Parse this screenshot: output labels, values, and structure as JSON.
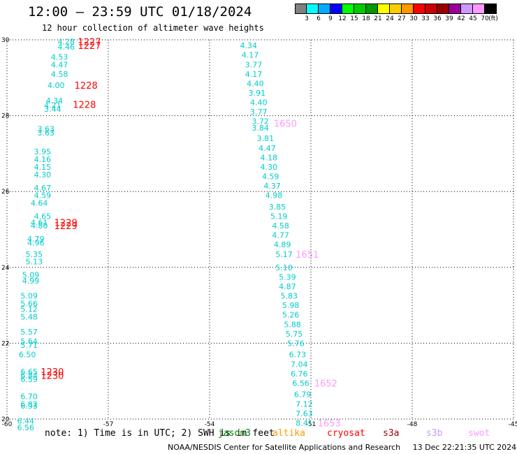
{
  "header": {
    "title": "12:00 – 23:59 UTC 01/18/2024",
    "subtitle": "12 hour collection of altimeter wave heights"
  },
  "colorbar": {
    "colors": [
      "#808080",
      "#00ffff",
      "#00aaff",
      "#0000ff",
      "#00ff00",
      "#00cc00",
      "#009900",
      "#ffff00",
      "#ffcc00",
      "#ff9900",
      "#ff0000",
      "#cc0000",
      "#990000",
      "#990099",
      "#cc99ff",
      "#ff99ff",
      "#000000"
    ],
    "labels": [
      "3",
      "6",
      "9",
      "12",
      "15",
      "18",
      "21",
      "24",
      "27",
      "30",
      "33",
      "36",
      "39",
      "42",
      "45",
      "70",
      "(ft)"
    ]
  },
  "footer": {
    "note": "note: 1) Time is in UTC; 2) SWH is in feet",
    "credit": "NOAA/NESDIS Center for Satellite Applications and Research",
    "generated": "13 Dec 22:21:35 UTC 2024"
  },
  "satellites": [
    {
      "name": "jason3",
      "color": "#007f00"
    },
    {
      "name": "altika",
      "color": "#ff9900"
    },
    {
      "name": "cryosat",
      "color": "#ff0000"
    },
    {
      "name": "s3a",
      "color": "#990000"
    },
    {
      "name": "s3b",
      "color": "#cc99ff"
    },
    {
      "name": "swot",
      "color": "#ff99ff"
    }
  ],
  "chart_data": {
    "type": "scatter",
    "title": "12:00 – 23:59 UTC 01/18/2024",
    "xlim": [
      -60,
      -45
    ],
    "ylim": [
      20,
      30
    ],
    "xticks": [
      -60,
      -57,
      -54,
      -51,
      -48,
      -45
    ],
    "yticks": [
      20,
      22,
      24,
      26,
      28,
      30
    ],
    "grid": true,
    "value_color": "#00cccc",
    "series": [
      {
        "name": "swh",
        "points": [
          {
            "x": -58.5,
            "y": 29.95,
            "v": "4.28"
          },
          {
            "x": -58.5,
            "y": 29.82,
            "v": "4.46"
          },
          {
            "x": -58.7,
            "y": 29.55,
            "v": "4.53"
          },
          {
            "x": -58.7,
            "y": 29.35,
            "v": "4.47"
          },
          {
            "x": -58.7,
            "y": 29.1,
            "v": "4.58"
          },
          {
            "x": -58.8,
            "y": 28.8,
            "v": "4.00"
          },
          {
            "x": -58.85,
            "y": 28.4,
            "v": "4.34"
          },
          {
            "x": -58.9,
            "y": 28.28,
            "v": "4.21"
          },
          {
            "x": -58.9,
            "y": 28.18,
            "v": "3.44"
          },
          {
            "x": -59.1,
            "y": 27.65,
            "v": "3.63"
          },
          {
            "x": -59.1,
            "y": 27.55,
            "v": "3.63"
          },
          {
            "x": -59.2,
            "y": 27.05,
            "v": "3.95"
          },
          {
            "x": -59.2,
            "y": 26.85,
            "v": "4.16"
          },
          {
            "x": -59.2,
            "y": 26.65,
            "v": "4.15"
          },
          {
            "x": -59.2,
            "y": 26.45,
            "v": "4.30"
          },
          {
            "x": -59.2,
            "y": 26.1,
            "v": "4.67"
          },
          {
            "x": -59.2,
            "y": 25.9,
            "v": "4.59"
          },
          {
            "x": -59.3,
            "y": 25.7,
            "v": "4.64"
          },
          {
            "x": -59.2,
            "y": 25.35,
            "v": "4.65"
          },
          {
            "x": -59.3,
            "y": 25.18,
            "v": "4.61"
          },
          {
            "x": -59.3,
            "y": 25.1,
            "v": "4.80"
          },
          {
            "x": -59.4,
            "y": 24.75,
            "v": "4.79"
          },
          {
            "x": -59.4,
            "y": 24.65,
            "v": "4.96"
          },
          {
            "x": -59.45,
            "y": 24.35,
            "v": "5.35"
          },
          {
            "x": -59.45,
            "y": 24.15,
            "v": "5.13"
          },
          {
            "x": -59.55,
            "y": 23.8,
            "v": "5.09"
          },
          {
            "x": -59.55,
            "y": 23.65,
            "v": "4.99"
          },
          {
            "x": -59.6,
            "y": 23.25,
            "v": "5.09"
          },
          {
            "x": -59.6,
            "y": 23.05,
            "v": "5.66"
          },
          {
            "x": -59.6,
            "y": 22.9,
            "v": "5.12"
          },
          {
            "x": -59.6,
            "y": 22.7,
            "v": "5.48"
          },
          {
            "x": -59.6,
            "y": 22.3,
            "v": "5.57"
          },
          {
            "x": -59.6,
            "y": 22.05,
            "v": "5.64"
          },
          {
            "x": -59.6,
            "y": 21.95,
            "v": "5.71"
          },
          {
            "x": -59.65,
            "y": 21.7,
            "v": "6.50"
          },
          {
            "x": -59.6,
            "y": 21.25,
            "v": "6.65"
          },
          {
            "x": -59.6,
            "y": 21.15,
            "v": "6.84"
          },
          {
            "x": -59.6,
            "y": 21.05,
            "v": "6.59"
          },
          {
            "x": -59.6,
            "y": 20.6,
            "v": "6.70"
          },
          {
            "x": -59.6,
            "y": 20.4,
            "v": "6.82"
          },
          {
            "x": -59.6,
            "y": 20.35,
            "v": "6.93"
          },
          {
            "x": -59.7,
            "y": 19.95,
            "v": "6.44"
          },
          {
            "x": -59.7,
            "y": 19.78,
            "v": "6.56"
          },
          {
            "x": -53.1,
            "y": 29.85,
            "v": "4.34"
          },
          {
            "x": -53.05,
            "y": 29.6,
            "v": "4.17"
          },
          {
            "x": -52.95,
            "y": 29.35,
            "v": "3.77"
          },
          {
            "x": -52.95,
            "y": 29.1,
            "v": "4.17"
          },
          {
            "x": -52.9,
            "y": 28.85,
            "v": "4.40"
          },
          {
            "x": -52.85,
            "y": 28.6,
            "v": "3.91"
          },
          {
            "x": -52.8,
            "y": 28.35,
            "v": "4.40"
          },
          {
            "x": -52.8,
            "y": 28.1,
            "v": "3.77"
          },
          {
            "x": -52.75,
            "y": 27.85,
            "v": "3.72"
          },
          {
            "x": -52.75,
            "y": 27.68,
            "v": "3.84"
          },
          {
            "x": -52.6,
            "y": 27.4,
            "v": "3.81"
          },
          {
            "x": -52.55,
            "y": 27.15,
            "v": "4.47"
          },
          {
            "x": -52.5,
            "y": 26.9,
            "v": "4.18"
          },
          {
            "x": -52.5,
            "y": 26.65,
            "v": "4.30"
          },
          {
            "x": -52.45,
            "y": 26.4,
            "v": "4.59"
          },
          {
            "x": -52.4,
            "y": 26.15,
            "v": "4.37"
          },
          {
            "x": -52.35,
            "y": 25.9,
            "v": "4.98"
          },
          {
            "x": -52.25,
            "y": 25.6,
            "v": "3.85"
          },
          {
            "x": -52.2,
            "y": 25.35,
            "v": "5.19"
          },
          {
            "x": -52.15,
            "y": 25.1,
            "v": "4.58"
          },
          {
            "x": -52.15,
            "y": 24.85,
            "v": "4.77"
          },
          {
            "x": -52.1,
            "y": 24.6,
            "v": "4.89"
          },
          {
            "x": -52.05,
            "y": 24.35,
            "v": "5.17"
          },
          {
            "x": -52.05,
            "y": 24.0,
            "v": "5.10"
          },
          {
            "x": -51.95,
            "y": 23.75,
            "v": "5.39"
          },
          {
            "x": -51.95,
            "y": 23.5,
            "v": "4.87"
          },
          {
            "x": -51.9,
            "y": 23.25,
            "v": "5.83"
          },
          {
            "x": -51.85,
            "y": 23.0,
            "v": "5.98"
          },
          {
            "x": -51.85,
            "y": 22.75,
            "v": "5.26"
          },
          {
            "x": -51.8,
            "y": 22.5,
            "v": "5.88"
          },
          {
            "x": -51.75,
            "y": 22.25,
            "v": "5.75"
          },
          {
            "x": -51.7,
            "y": 22.0,
            "v": "5.76"
          },
          {
            "x": -51.65,
            "y": 21.7,
            "v": "6.73"
          },
          {
            "x": -51.6,
            "y": 21.45,
            "v": "7.04"
          },
          {
            "x": -51.6,
            "y": 21.2,
            "v": "6.76"
          },
          {
            "x": -51.55,
            "y": 20.95,
            "v": "6.56"
          },
          {
            "x": -51.5,
            "y": 20.65,
            "v": "6.79"
          },
          {
            "x": -51.45,
            "y": 20.4,
            "v": "7.12"
          },
          {
            "x": -51.45,
            "y": 20.15,
            "v": "7.63"
          },
          {
            "x": -51.45,
            "y": 19.9,
            "v": "8.41"
          }
        ]
      }
    ],
    "time_labels": [
      {
        "x": -57.9,
        "y": 29.95,
        "text": "1227",
        "color": "#ff0000"
      },
      {
        "x": -57.9,
        "y": 29.85,
        "text": "1227",
        "color": "#ff0000"
      },
      {
        "x": -58.0,
        "y": 28.8,
        "text": "1228",
        "color": "#ff0000"
      },
      {
        "x": -58.05,
        "y": 28.3,
        "text": "1228",
        "color": "#ff0000"
      },
      {
        "x": -58.6,
        "y": 25.18,
        "text": "1229",
        "color": "#ff0000"
      },
      {
        "x": -58.6,
        "y": 25.1,
        "text": "1229",
        "color": "#ff0000"
      },
      {
        "x": -59.0,
        "y": 21.25,
        "text": "1230",
        "color": "#ff0000"
      },
      {
        "x": -59.0,
        "y": 21.15,
        "text": "1230",
        "color": "#ff0000"
      },
      {
        "x": -52.1,
        "y": 27.8,
        "text": "1650",
        "color": "#ff99ff"
      },
      {
        "x": -51.45,
        "y": 24.35,
        "text": "1651",
        "color": "#ff99ff"
      },
      {
        "x": -50.9,
        "y": 20.95,
        "text": "1652",
        "color": "#ff99ff"
      },
      {
        "x": -50.8,
        "y": 19.9,
        "text": "1653",
        "color": "#ff99ff"
      }
    ]
  }
}
